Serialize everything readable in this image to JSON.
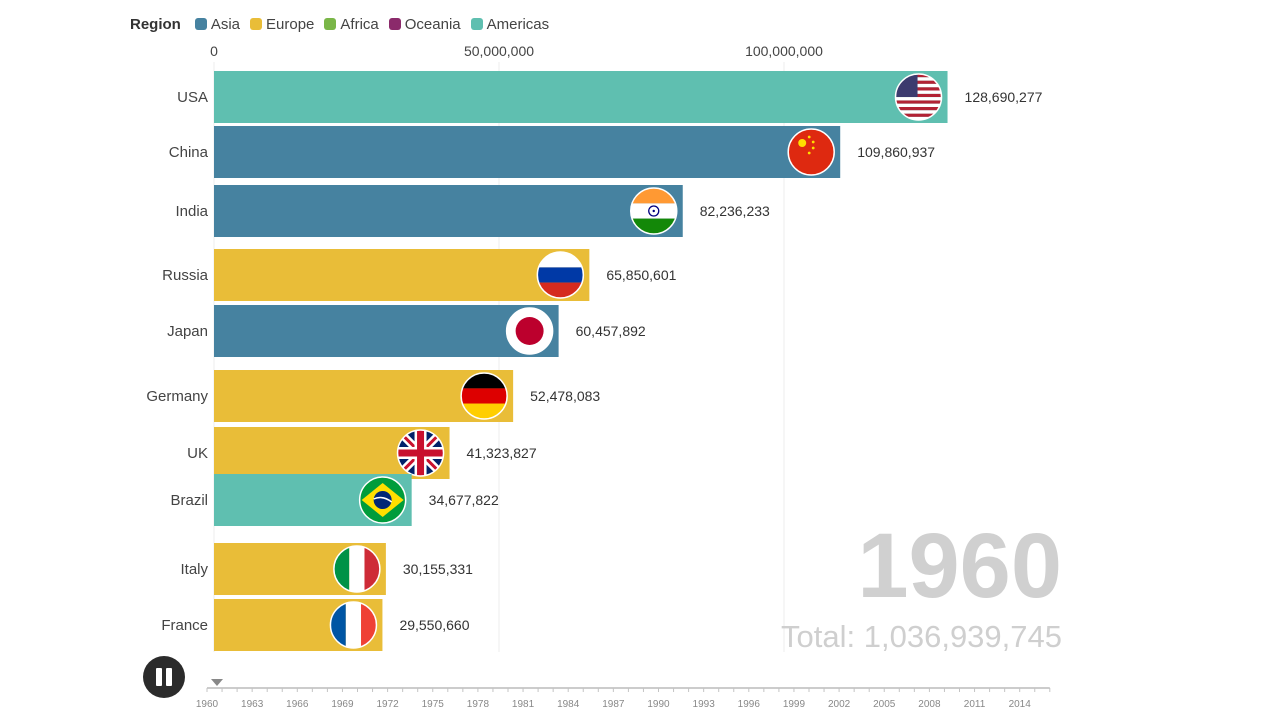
{
  "legend": {
    "title": "Region",
    "items": [
      {
        "name": "Asia",
        "color": "#4682a0"
      },
      {
        "name": "Europe",
        "color": "#e9bd38"
      },
      {
        "name": "Africa",
        "color": "#7ab648"
      },
      {
        "name": "Oceania",
        "color": "#8b2a6b"
      },
      {
        "name": "Americas",
        "color": "#5fbfb0"
      }
    ]
  },
  "chart_data": {
    "type": "bar",
    "orientation": "horizontal",
    "xlim": [
      0,
      150000000
    ],
    "x_ticks": [
      {
        "value": 0,
        "label": "0"
      },
      {
        "value": 50000000,
        "label": "50,000,000"
      },
      {
        "value": 100000000,
        "label": "100,000,000"
      }
    ],
    "bars": [
      {
        "category": "USA",
        "value": 128690277,
        "label": "128,690,277",
        "region": "Americas",
        "flag": "usa-flag"
      },
      {
        "category": "China",
        "value": 109860937,
        "label": "109,860,937",
        "region": "Asia",
        "flag": "china-flag"
      },
      {
        "category": "India",
        "value": 82236233,
        "label": "82,236,233",
        "region": "Asia",
        "flag": "india-flag"
      },
      {
        "category": "Russia",
        "value": 65850601,
        "label": "65,850,601",
        "region": "Europe",
        "flag": "russia-flag"
      },
      {
        "category": "Japan",
        "value": 60457892,
        "label": "60,457,892",
        "region": "Asia",
        "flag": "japan-flag"
      },
      {
        "category": "Germany",
        "value": 52478083,
        "label": "52,478,083",
        "region": "Europe",
        "flag": "germany-flag"
      },
      {
        "category": "UK",
        "value": 41323827,
        "label": "41,323,827",
        "region": "Europe",
        "flag": "uk-flag"
      },
      {
        "category": "Brazil",
        "value": 34677822,
        "label": "34,677,822",
        "region": "Americas",
        "flag": "brazil-flag"
      },
      {
        "category": "Italy",
        "value": 30155331,
        "label": "30,155,331",
        "region": "Europe",
        "flag": "italy-flag"
      },
      {
        "category": "France",
        "value": 29550660,
        "label": "29,550,660",
        "region": "Europe",
        "flag": "france-flag"
      }
    ],
    "current_year": "1960",
    "total_label": "Total: 1,036,939,745",
    "timeline": {
      "start": 1960,
      "end": 2016,
      "current": 1960,
      "tick_labels": [
        "1960",
        "1963",
        "1966",
        "1969",
        "1972",
        "1975",
        "1978",
        "1981",
        "1984",
        "1987",
        "1990",
        "1993",
        "1996",
        "1999",
        "2002",
        "2005",
        "2008",
        "2011",
        "2014"
      ]
    }
  },
  "controls": {
    "play_pause_icon": "pause-icon"
  }
}
